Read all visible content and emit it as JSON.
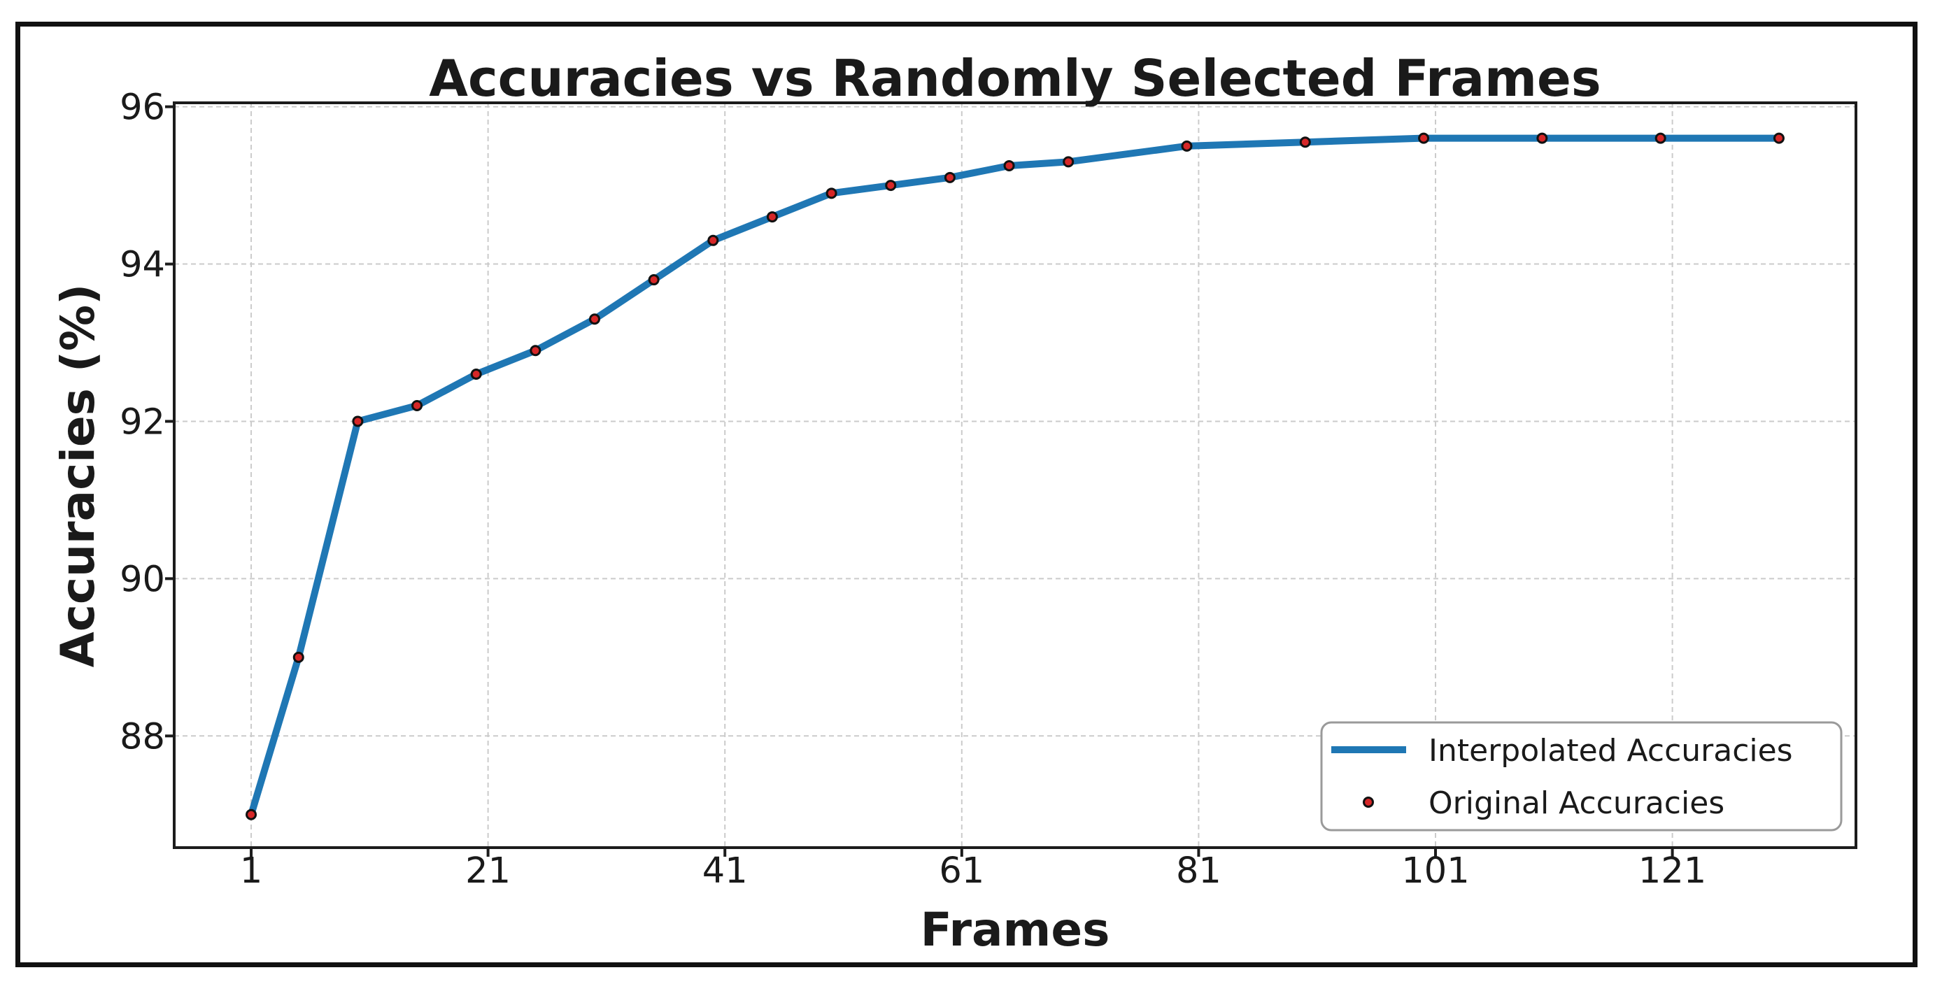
{
  "figure": {
    "background": "#ffffff",
    "border_color": "#111111"
  },
  "chart_data": {
    "type": "line",
    "title": "Accuracies vs Randomly Selected Frames",
    "xlabel": "Frames",
    "ylabel": "Accuracies (%)",
    "x": [
      1,
      5,
      10,
      15,
      20,
      25,
      30,
      35,
      40,
      45,
      50,
      55,
      60,
      65,
      70,
      80,
      90,
      100,
      110,
      120,
      130
    ],
    "series": [
      {
        "name": "Interpolated Accuracies",
        "type": "line",
        "color": "#1f77b4",
        "values": [
          87.0,
          89.0,
          92.0,
          92.2,
          92.6,
          92.9,
          93.3,
          93.8,
          94.3,
          94.6,
          94.9,
          95.0,
          95.1,
          95.25,
          95.3,
          95.5,
          95.55,
          95.6,
          95.6,
          95.6,
          95.6
        ]
      },
      {
        "name": "Original Accuracies",
        "type": "scatter",
        "color": "#d62728",
        "edge_color": "#111111",
        "values": [
          87.0,
          89.0,
          92.0,
          92.2,
          92.6,
          92.9,
          93.3,
          93.8,
          94.3,
          94.6,
          94.9,
          95.0,
          95.1,
          95.25,
          95.3,
          95.5,
          95.55,
          95.6,
          95.6,
          95.6,
          95.6
        ]
      }
    ],
    "x_ticks": [
      1,
      21,
      41,
      61,
      81,
      101,
      121
    ],
    "y_ticks": [
      88,
      90,
      92,
      94,
      96
    ],
    "xlim": [
      -5.5,
      136.5
    ],
    "ylim": [
      86.58,
      96.05
    ],
    "grid": true,
    "grid_color": "#cbcbcb",
    "spine_color": "#1c1c1c",
    "legend": {
      "position": "lower right"
    }
  }
}
